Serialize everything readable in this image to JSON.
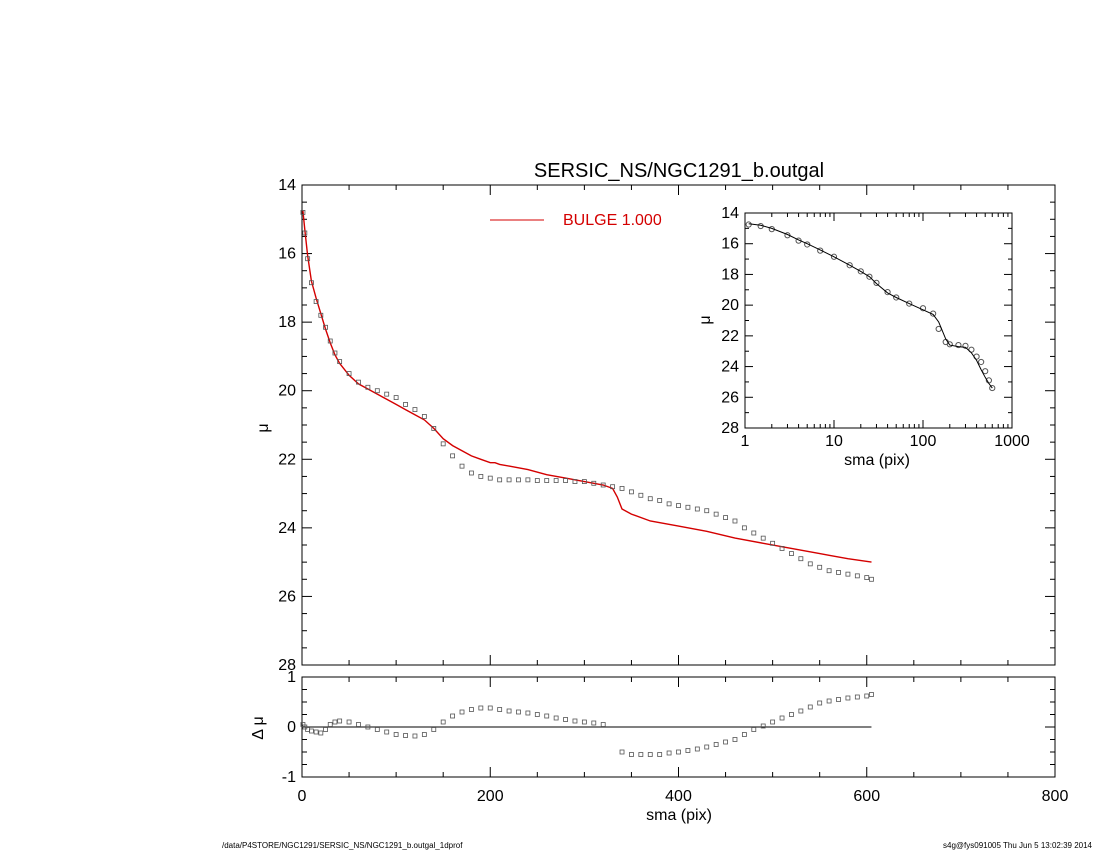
{
  "footer": {
    "left": "/data/P4STORE/NGC1291/SERSIC_NS/NGC1291_b.outgal_1dprof",
    "right": "s4g@fys091005  Thu Jun  5 13:02:39 2014"
  },
  "colors": {
    "model": "#d40000",
    "data": "#555555",
    "axes": "#000000"
  },
  "chart_data": [
    {
      "id": "main",
      "type": "scatter",
      "title": "SERSIC_NS/NGC1291_b.outgal",
      "xlabel": "",
      "ylabel": "μ",
      "xlim": [
        0,
        800
      ],
      "ylim": [
        28,
        14
      ],
      "y_reversed": true,
      "xticks": [
        "0",
        "200",
        "400",
        "600",
        "800"
      ],
      "yticks": [
        "14",
        "16",
        "18",
        "20",
        "22",
        "24",
        "26",
        "28"
      ],
      "legend": {
        "label": "BULGE  1.000",
        "placement": "top-center"
      },
      "series": [
        {
          "name": "BULGE  1.000",
          "style": "line",
          "x": [
            1,
            3,
            6,
            10,
            15,
            20,
            25,
            30,
            35,
            40,
            50,
            60,
            70,
            80,
            90,
            100,
            110,
            120,
            130,
            140,
            150,
            160,
            170,
            180,
            190,
            200,
            205,
            210,
            220,
            240,
            260,
            280,
            300,
            320,
            330,
            335,
            340,
            350,
            370,
            400,
            430,
            460,
            490,
            520,
            550,
            560,
            580,
            605
          ],
          "y": [
            14.75,
            15.3,
            16.05,
            16.8,
            17.3,
            17.75,
            18.2,
            18.6,
            18.95,
            19.2,
            19.55,
            19.8,
            19.95,
            20.1,
            20.25,
            20.4,
            20.55,
            20.7,
            20.85,
            21.1,
            21.4,
            21.6,
            21.75,
            21.9,
            22.0,
            22.1,
            22.1,
            22.15,
            22.2,
            22.3,
            22.45,
            22.55,
            22.65,
            22.75,
            22.85,
            23.1,
            23.45,
            23.6,
            23.8,
            23.95,
            24.1,
            24.3,
            24.45,
            24.6,
            24.75,
            24.8,
            24.9,
            25.0
          ]
        },
        {
          "name": "",
          "style": "markers",
          "x": [
            1,
            3,
            6,
            10,
            15,
            20,
            25,
            30,
            35,
            40,
            50,
            60,
            70,
            80,
            90,
            100,
            110,
            120,
            130,
            140,
            150,
            160,
            170,
            180,
            190,
            200,
            210,
            220,
            230,
            240,
            250,
            260,
            270,
            280,
            290,
            300,
            310,
            320,
            330,
            340,
            350,
            360,
            370,
            380,
            390,
            400,
            410,
            420,
            430,
            440,
            450,
            460,
            470,
            480,
            490,
            500,
            510,
            520,
            530,
            540,
            550,
            560,
            570,
            580,
            590,
            600,
            605
          ],
          "y": [
            14.8,
            15.4,
            16.15,
            16.85,
            17.4,
            17.8,
            18.15,
            18.55,
            18.9,
            19.15,
            19.5,
            19.75,
            19.9,
            20.0,
            20.1,
            20.2,
            20.4,
            20.55,
            20.75,
            21.1,
            21.55,
            21.9,
            22.2,
            22.4,
            22.5,
            22.55,
            22.6,
            22.6,
            22.6,
            22.6,
            22.62,
            22.62,
            22.62,
            22.62,
            22.65,
            22.65,
            22.7,
            22.75,
            22.8,
            22.85,
            22.95,
            23.05,
            23.15,
            23.2,
            23.3,
            23.35,
            23.4,
            23.45,
            23.5,
            23.6,
            23.7,
            23.8,
            24.0,
            24.15,
            24.3,
            24.45,
            24.6,
            24.75,
            24.9,
            25.05,
            25.15,
            25.25,
            25.3,
            25.35,
            25.4,
            25.45,
            25.5
          ]
        }
      ]
    },
    {
      "id": "residual",
      "type": "scatter",
      "title": "",
      "xlabel": "sma (pix)",
      "ylabel": "Δ μ",
      "xlim": [
        0,
        800
      ],
      "ylim": [
        -1,
        1
      ],
      "xticks": [
        "0",
        "200",
        "400",
        "600",
        "800"
      ],
      "yticks": [
        "1",
        "0",
        "-1"
      ],
      "zero_line": {
        "x": [
          0,
          605
        ],
        "y": 0
      },
      "series": [
        {
          "name": "",
          "style": "markers",
          "x": [
            1,
            3,
            6,
            10,
            15,
            20,
            25,
            30,
            35,
            40,
            50,
            60,
            70,
            80,
            90,
            100,
            110,
            120,
            130,
            140,
            150,
            160,
            170,
            180,
            190,
            200,
            210,
            220,
            230,
            240,
            250,
            260,
            270,
            280,
            290,
            300,
            310,
            320,
            340,
            350,
            360,
            370,
            380,
            390,
            400,
            410,
            420,
            430,
            440,
            450,
            460,
            470,
            480,
            490,
            500,
            510,
            520,
            530,
            540,
            550,
            560,
            570,
            580,
            590,
            600,
            605
          ],
          "y": [
            0.05,
            0.0,
            -0.05,
            -0.08,
            -0.1,
            -0.12,
            -0.05,
            0.05,
            0.1,
            0.12,
            0.1,
            0.05,
            0.0,
            -0.05,
            -0.1,
            -0.15,
            -0.17,
            -0.18,
            -0.15,
            -0.05,
            0.1,
            0.22,
            0.3,
            0.35,
            0.38,
            0.38,
            0.35,
            0.32,
            0.3,
            0.28,
            0.25,
            0.22,
            0.18,
            0.15,
            0.12,
            0.1,
            0.08,
            0.05,
            -0.5,
            -0.55,
            -0.55,
            -0.55,
            -0.55,
            -0.52,
            -0.5,
            -0.47,
            -0.44,
            -0.4,
            -0.35,
            -0.3,
            -0.25,
            -0.15,
            -0.05,
            0.02,
            0.1,
            0.18,
            0.25,
            0.32,
            0.4,
            0.48,
            0.52,
            0.55,
            0.58,
            0.6,
            0.62,
            0.65
          ]
        }
      ]
    },
    {
      "id": "inset",
      "type": "line",
      "title": "",
      "xlabel": "sma (pix)",
      "ylabel": "μ",
      "xscale": "log",
      "xlim": [
        1,
        1000
      ],
      "ylim": [
        28,
        14
      ],
      "y_reversed": true,
      "xticks": [
        "1",
        "10",
        "100",
        "1000"
      ],
      "yticks": [
        "14",
        "16",
        "18",
        "20",
        "22",
        "24",
        "26",
        "28"
      ],
      "series": [
        {
          "name": "",
          "style": "line",
          "x": [
            1.1,
            1.5,
            2,
            3,
            4,
            5,
            7,
            10,
            15,
            20,
            25,
            30,
            40,
            50,
            70,
            100,
            130,
            150,
            180,
            200,
            250,
            300,
            350,
            400,
            450,
            500,
            550,
            600
          ],
          "y": [
            14.7,
            14.8,
            15.0,
            15.4,
            15.75,
            16.0,
            16.4,
            16.85,
            17.4,
            17.8,
            18.15,
            18.6,
            19.2,
            19.5,
            19.9,
            20.3,
            20.6,
            21.1,
            22.2,
            22.6,
            22.7,
            22.75,
            23.1,
            23.6,
            24.2,
            24.7,
            25.1,
            25.4
          ]
        },
        {
          "name": "",
          "style": "markers",
          "x": [
            1.1,
            1.5,
            2,
            3,
            4,
            5,
            7,
            10,
            15,
            20,
            25,
            30,
            40,
            50,
            70,
            100,
            130,
            150,
            180,
            200,
            250,
            300,
            350,
            400,
            450,
            500,
            550,
            600
          ],
          "y": [
            14.75,
            14.85,
            15.05,
            15.45,
            15.8,
            16.05,
            16.45,
            16.85,
            17.4,
            17.8,
            18.15,
            18.55,
            19.15,
            19.5,
            19.9,
            20.2,
            20.55,
            21.55,
            22.4,
            22.55,
            22.6,
            22.65,
            22.9,
            23.35,
            23.7,
            24.3,
            24.9,
            25.4
          ]
        }
      ]
    }
  ]
}
